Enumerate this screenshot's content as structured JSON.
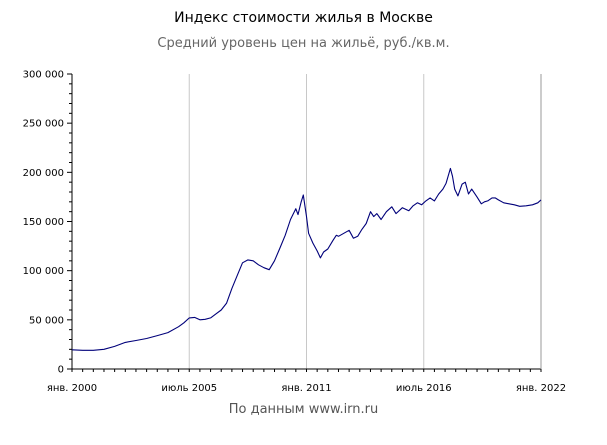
{
  "chart_data": {
    "type": "line",
    "title": "Индекс стоимости жилья в Москве",
    "subtitle": "Средний уровень цен на жильё, руб./кв.м.",
    "source": "По данным www.irn.ru",
    "xlabel": "",
    "ylabel": "",
    "ylim": [
      0,
      300000
    ],
    "xlim": [
      2000.0,
      2022.0
    ],
    "y_ticks": [
      {
        "value": 0,
        "label": "0"
      },
      {
        "value": 50000,
        "label": "50 000"
      },
      {
        "value": 100000,
        "label": "100 000"
      },
      {
        "value": 150000,
        "label": "150 000"
      },
      {
        "value": 200000,
        "label": "200 000"
      },
      {
        "value": 250000,
        "label": "250 000"
      },
      {
        "value": 300000,
        "label": "300 000"
      }
    ],
    "x_ticks": [
      {
        "value": 2000.0,
        "label": "янв. 2000"
      },
      {
        "value": 2005.5,
        "label": "июль 2005"
      },
      {
        "value": 2011.0,
        "label": "янв. 2011"
      },
      {
        "value": 2016.5,
        "label": "июль 2016"
      },
      {
        "value": 2022.0,
        "label": "янв. 2022"
      }
    ],
    "grid": true,
    "line_color": "#00007a",
    "series": [
      {
        "values": [
          [
            2000.0,
            19500
          ],
          [
            2000.5,
            19000
          ],
          [
            2001.0,
            19000
          ],
          [
            2001.5,
            20000
          ],
          [
            2002.0,
            23000
          ],
          [
            2002.5,
            27000
          ],
          [
            2003.0,
            29000
          ],
          [
            2003.5,
            31000
          ],
          [
            2004.0,
            34000
          ],
          [
            2004.5,
            37000
          ],
          [
            2005.0,
            43000
          ],
          [
            2005.25,
            47000
          ],
          [
            2005.5,
            52000
          ],
          [
            2005.75,
            52500
          ],
          [
            2006.0,
            50000
          ],
          [
            2006.25,
            50500
          ],
          [
            2006.5,
            52000
          ],
          [
            2006.75,
            56000
          ],
          [
            2007.0,
            60000
          ],
          [
            2007.25,
            67000
          ],
          [
            2007.5,
            82000
          ],
          [
            2007.75,
            95000
          ],
          [
            2008.0,
            108000
          ],
          [
            2008.25,
            111000
          ],
          [
            2008.5,
            110000
          ],
          [
            2008.75,
            106000
          ],
          [
            2009.0,
            103000
          ],
          [
            2009.25,
            101000
          ],
          [
            2009.5,
            110000
          ],
          [
            2009.75,
            123000
          ],
          [
            2010.0,
            136000
          ],
          [
            2010.25,
            152000
          ],
          [
            2010.5,
            163000
          ],
          [
            2010.6,
            157000
          ],
          [
            2010.75,
            170000
          ],
          [
            2010.85,
            177000
          ],
          [
            2011.0,
            155000
          ],
          [
            2011.1,
            138000
          ],
          [
            2011.3,
            128000
          ],
          [
            2011.5,
            120000
          ],
          [
            2011.65,
            113000
          ],
          [
            2011.8,
            119000
          ],
          [
            2012.0,
            122000
          ],
          [
            2012.25,
            131000
          ],
          [
            2012.4,
            136000
          ],
          [
            2012.5,
            135000
          ],
          [
            2012.75,
            138000
          ],
          [
            2013.0,
            141000
          ],
          [
            2013.2,
            133000
          ],
          [
            2013.4,
            135000
          ],
          [
            2013.6,
            142000
          ],
          [
            2013.8,
            148000
          ],
          [
            2014.0,
            160000
          ],
          [
            2014.15,
            155000
          ],
          [
            2014.3,
            158000
          ],
          [
            2014.5,
            152000
          ],
          [
            2014.75,
            160000
          ],
          [
            2015.0,
            165000
          ],
          [
            2015.2,
            158000
          ],
          [
            2015.5,
            164000
          ],
          [
            2015.8,
            161000
          ],
          [
            2016.0,
            166000
          ],
          [
            2016.2,
            169000
          ],
          [
            2016.4,
            167000
          ],
          [
            2016.6,
            171000
          ],
          [
            2016.8,
            174000
          ],
          [
            2017.0,
            171000
          ],
          [
            2017.2,
            178000
          ],
          [
            2017.4,
            183000
          ],
          [
            2017.55,
            189000
          ],
          [
            2017.75,
            204000
          ],
          [
            2017.85,
            196000
          ],
          [
            2017.95,
            183000
          ],
          [
            2018.1,
            176000
          ],
          [
            2018.3,
            188000
          ],
          [
            2018.45,
            190000
          ],
          [
            2018.6,
            178000
          ],
          [
            2018.75,
            183000
          ],
          [
            2019.0,
            175000
          ],
          [
            2019.2,
            168000
          ],
          [
            2019.35,
            170000
          ],
          [
            2019.5,
            171000
          ],
          [
            2019.7,
            174000
          ],
          [
            2019.85,
            174000
          ],
          [
            2020.0,
            172000
          ],
          [
            2020.25,
            169000
          ],
          [
            2020.5,
            168000
          ],
          [
            2020.75,
            167000
          ],
          [
            2021.0,
            165500
          ],
          [
            2021.3,
            166000
          ],
          [
            2021.6,
            167000
          ],
          [
            2021.85,
            169000
          ],
          [
            2022.0,
            172000
          ]
        ]
      }
    ]
  }
}
